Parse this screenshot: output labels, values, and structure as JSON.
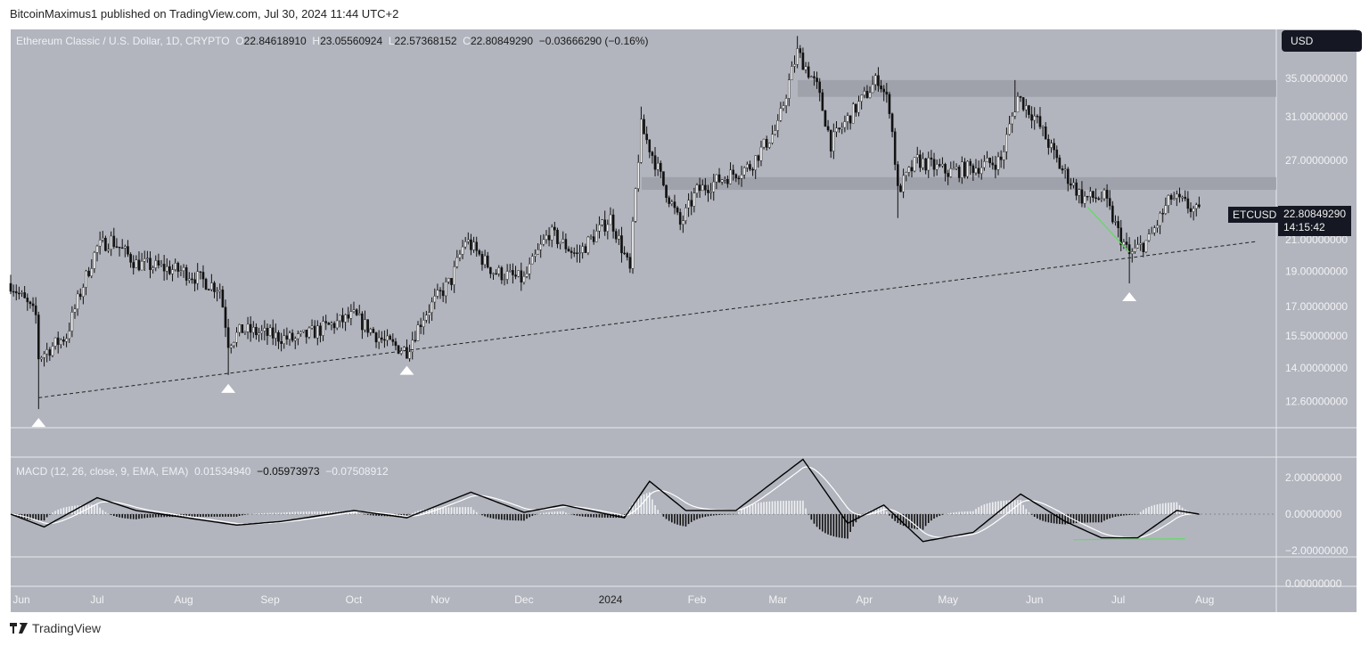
{
  "header": {
    "published": "BitcoinMaximus1 published on TradingView.com, Jul 30, 2024 11:44 UTC+2"
  },
  "legend": {
    "symbol": "Ethereum Classic / U.S. Dollar, 1D, CRYPTO",
    "o_label": "O",
    "open": "22.84618910",
    "h_label": "H",
    "high": "23.05560924",
    "l_label": "L",
    "low": "22.57368152",
    "c_label": "C",
    "close": "22.80849290",
    "change": "−0.03666290 (−0.16%)"
  },
  "macd_legend": {
    "title": "MACD (12, 26, close, 9, EMA, EMA)",
    "hist": "0.01534940",
    "macd": "−0.05973973",
    "signal": "−0.07508912"
  },
  "axis": {
    "currency": "USD",
    "ticker": "ETCUSD",
    "last_price": "22.80849290",
    "countdown": "14:15:42"
  },
  "footer": {
    "brand": "TradingView"
  },
  "chart_data": {
    "type": "candlestick",
    "price_scale": "log",
    "ylim": [
      11.5,
      42
    ],
    "y_ticks": [
      "35.00000000",
      "31.00000000",
      "27.00000000",
      "21.00000000",
      "19.00000000",
      "17.00000000",
      "15.50000000",
      "14.00000000",
      "12.60000000"
    ],
    "y_tick_values": [
      35,
      31,
      27,
      21,
      19,
      17,
      15.5,
      14,
      12.6
    ],
    "x_ticks": [
      "Jun",
      "Jul",
      "Aug",
      "Sep",
      "Oct",
      "Nov",
      "Dec",
      "2024",
      "Feb",
      "Mar",
      "Apr",
      "May",
      "Jun",
      "Jul",
      "Aug"
    ],
    "x_tick_dates": [
      "2023-06-01",
      "2023-07-01",
      "2023-08-01",
      "2023-09-01",
      "2023-10-01",
      "2023-11-01",
      "2023-12-01",
      "2024-01-01",
      "2024-02-01",
      "2024-03-01",
      "2024-04-01",
      "2024-05-01",
      "2024-06-01",
      "2024-07-01",
      "2024-08-01"
    ],
    "close_keypoints": [
      [
        "2023-05-31",
        18.3
      ],
      [
        "2023-06-09",
        16.5
      ],
      [
        "2023-06-10",
        14.5
      ],
      [
        "2023-06-20",
        15.5
      ],
      [
        "2023-07-01",
        20.5
      ],
      [
        "2023-07-06",
        21
      ],
      [
        "2023-07-15",
        19.5
      ],
      [
        "2023-08-01",
        19
      ],
      [
        "2023-08-14",
        18
      ],
      [
        "2023-08-17",
        15.2
      ],
      [
        "2023-08-22",
        15.8
      ],
      [
        "2023-09-10",
        15.3
      ],
      [
        "2023-10-01",
        16.5
      ],
      [
        "2023-10-12",
        15.2
      ],
      [
        "2023-10-20",
        14.8
      ],
      [
        "2023-10-26",
        16.5
      ],
      [
        "2023-11-05",
        18.5
      ],
      [
        "2023-11-10",
        21
      ],
      [
        "2023-11-20",
        19
      ],
      [
        "2023-12-01",
        18.5
      ],
      [
        "2023-12-10",
        21.5
      ],
      [
        "2023-12-20",
        20
      ],
      [
        "2024-01-01",
        22.5
      ],
      [
        "2024-01-08",
        19
      ],
      [
        "2024-01-12",
        30
      ],
      [
        "2024-01-20",
        25
      ],
      [
        "2024-01-26",
        22
      ],
      [
        "2024-02-01",
        24.5
      ],
      [
        "2024-02-10",
        25.5
      ],
      [
        "2024-02-20",
        26.5
      ],
      [
        "2024-03-01",
        30
      ],
      [
        "2024-03-08",
        38
      ],
      [
        "2024-03-15",
        34
      ],
      [
        "2024-03-20",
        28.5
      ],
      [
        "2024-04-01",
        33
      ],
      [
        "2024-04-06",
        35
      ],
      [
        "2024-04-10",
        32
      ],
      [
        "2024-04-13",
        24.5
      ],
      [
        "2024-04-20",
        27
      ],
      [
        "2024-05-01",
        26
      ],
      [
        "2024-05-12",
        26.5
      ],
      [
        "2024-05-20",
        27
      ],
      [
        "2024-05-26",
        33
      ],
      [
        "2024-06-01",
        31
      ],
      [
        "2024-06-10",
        26.5
      ],
      [
        "2024-06-18",
        24
      ],
      [
        "2024-06-26",
        24
      ],
      [
        "2024-07-01",
        21.5
      ],
      [
        "2024-07-05",
        20
      ],
      [
        "2024-07-12",
        21
      ],
      [
        "2024-07-20",
        24
      ],
      [
        "2024-07-25",
        23.5
      ],
      [
        "2024-07-30",
        22.8
      ]
    ],
    "support_zones": [
      [
        33,
        34.8
      ],
      [
        24.6,
        25.6
      ]
    ],
    "trendline": [
      [
        "2023-06-10",
        12.75
      ],
      [
        "2024-08-20",
        20.9
      ]
    ],
    "bounce_markers": [
      "2023-06-10",
      "2023-08-17",
      "2023-10-20",
      "2024-07-05"
    ],
    "macd": {
      "y_ticks": [
        "2.00000000",
        "0.00000000",
        "−2.00000000"
      ],
      "y_tick_values": [
        2,
        0,
        -2
      ],
      "macd_keypoints": [
        [
          "2023-05-31",
          0
        ],
        [
          "2023-06-12",
          -0.7
        ],
        [
          "2023-07-01",
          0.9
        ],
        [
          "2023-07-15",
          0.2
        ],
        [
          "2023-08-20",
          -0.6
        ],
        [
          "2023-09-05",
          -0.4
        ],
        [
          "2023-10-01",
          0.2
        ],
        [
          "2023-10-20",
          -0.2
        ],
        [
          "2023-11-12",
          1.2
        ],
        [
          "2023-12-01",
          0.1
        ],
        [
          "2023-12-15",
          0.5
        ],
        [
          "2024-01-06",
          -0.2
        ],
        [
          "2024-01-15",
          1.8
        ],
        [
          "2024-01-28",
          0.2
        ],
        [
          "2024-02-15",
          0.2
        ],
        [
          "2024-03-10",
          3.0
        ],
        [
          "2024-03-26",
          -0.5
        ],
        [
          "2024-04-08",
          0.5
        ],
        [
          "2024-04-22",
          -1.5
        ],
        [
          "2024-05-10",
          -1.0
        ],
        [
          "2024-05-27",
          1.1
        ],
        [
          "2024-06-12",
          -0.4
        ],
        [
          "2024-06-25",
          -1.3
        ],
        [
          "2024-07-08",
          -1.3
        ],
        [
          "2024-07-22",
          0.2
        ],
        [
          "2024-07-30",
          0.0
        ]
      ],
      "divergence_line": [
        [
          "2024-06-15",
          -1.4
        ],
        [
          "2024-07-25",
          -1.35
        ]
      ]
    },
    "lower_pane": {
      "y_ticks": [
        "0.00000000"
      ]
    },
    "colors": {
      "background": "#b2b5be",
      "up": "#f4f4f4",
      "down": "#111111",
      "zone": "#9a9da6",
      "divergence": "#5fdc5f",
      "macd_line": "#000000",
      "signal_line": "#ffffff"
    }
  }
}
